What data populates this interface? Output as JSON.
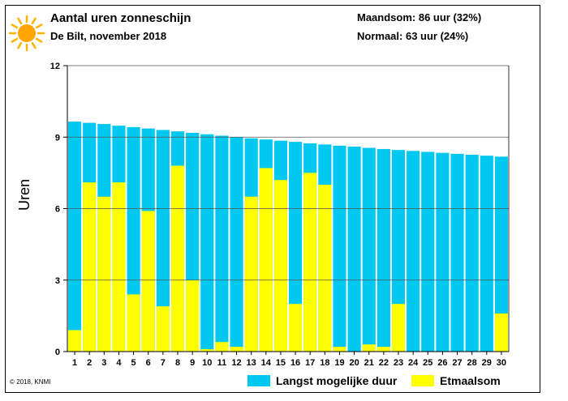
{
  "header": {
    "title": "Aantal uren zonneschijn",
    "subtitle": "De Bilt, november 2018",
    "maandsom": "Maandsom: 86 uur (32%)",
    "normaal": "Normaal: 63 uur (24%)"
  },
  "footer": {
    "copyright": "© 2018, KNMI"
  },
  "legend": {
    "langst_label": "Langst mogelijke duur",
    "etmaalsom_label": "Etmaalsom"
  },
  "colors": {
    "langst": "#00C8F0",
    "etmaalsom": "#FFFF00",
    "sun": "#FFA500",
    "sun_rays": "#FFB300"
  },
  "chart_data": {
    "type": "bar",
    "title": "Aantal uren zonneschijn",
    "ylabel": "Uren",
    "xlabel": "",
    "ylim": [
      0,
      12
    ],
    "yticks": [
      0,
      3,
      6,
      9,
      12
    ],
    "grid": true,
    "categories": [
      "1",
      "2",
      "3",
      "4",
      "5",
      "6",
      "7",
      "8",
      "9",
      "10",
      "11",
      "12",
      "13",
      "14",
      "15",
      "16",
      "17",
      "18",
      "19",
      "20",
      "21",
      "22",
      "23",
      "24",
      "25",
      "26",
      "27",
      "28",
      "29",
      "30"
    ],
    "series": [
      {
        "name": "Langst mogelijke duur",
        "values": [
          9.65,
          9.6,
          9.55,
          9.48,
          9.42,
          9.36,
          9.3,
          9.24,
          9.18,
          9.12,
          9.06,
          9.0,
          8.95,
          8.9,
          8.85,
          8.8,
          8.74,
          8.69,
          8.64,
          8.6,
          8.55,
          8.5,
          8.46,
          8.42,
          8.38,
          8.34,
          8.3,
          8.26,
          8.22,
          8.18
        ]
      },
      {
        "name": "Etmaalsom",
        "values": [
          0.9,
          7.1,
          6.5,
          7.1,
          2.4,
          5.9,
          1.9,
          7.8,
          3.0,
          0.1,
          0.4,
          0.2,
          6.5,
          7.7,
          7.2,
          2.0,
          7.5,
          7.0,
          0.2,
          0.0,
          0.3,
          0.2,
          2.0,
          0.0,
          0.0,
          0.0,
          0.0,
          0.0,
          0.0,
          1.6
        ]
      }
    ]
  }
}
